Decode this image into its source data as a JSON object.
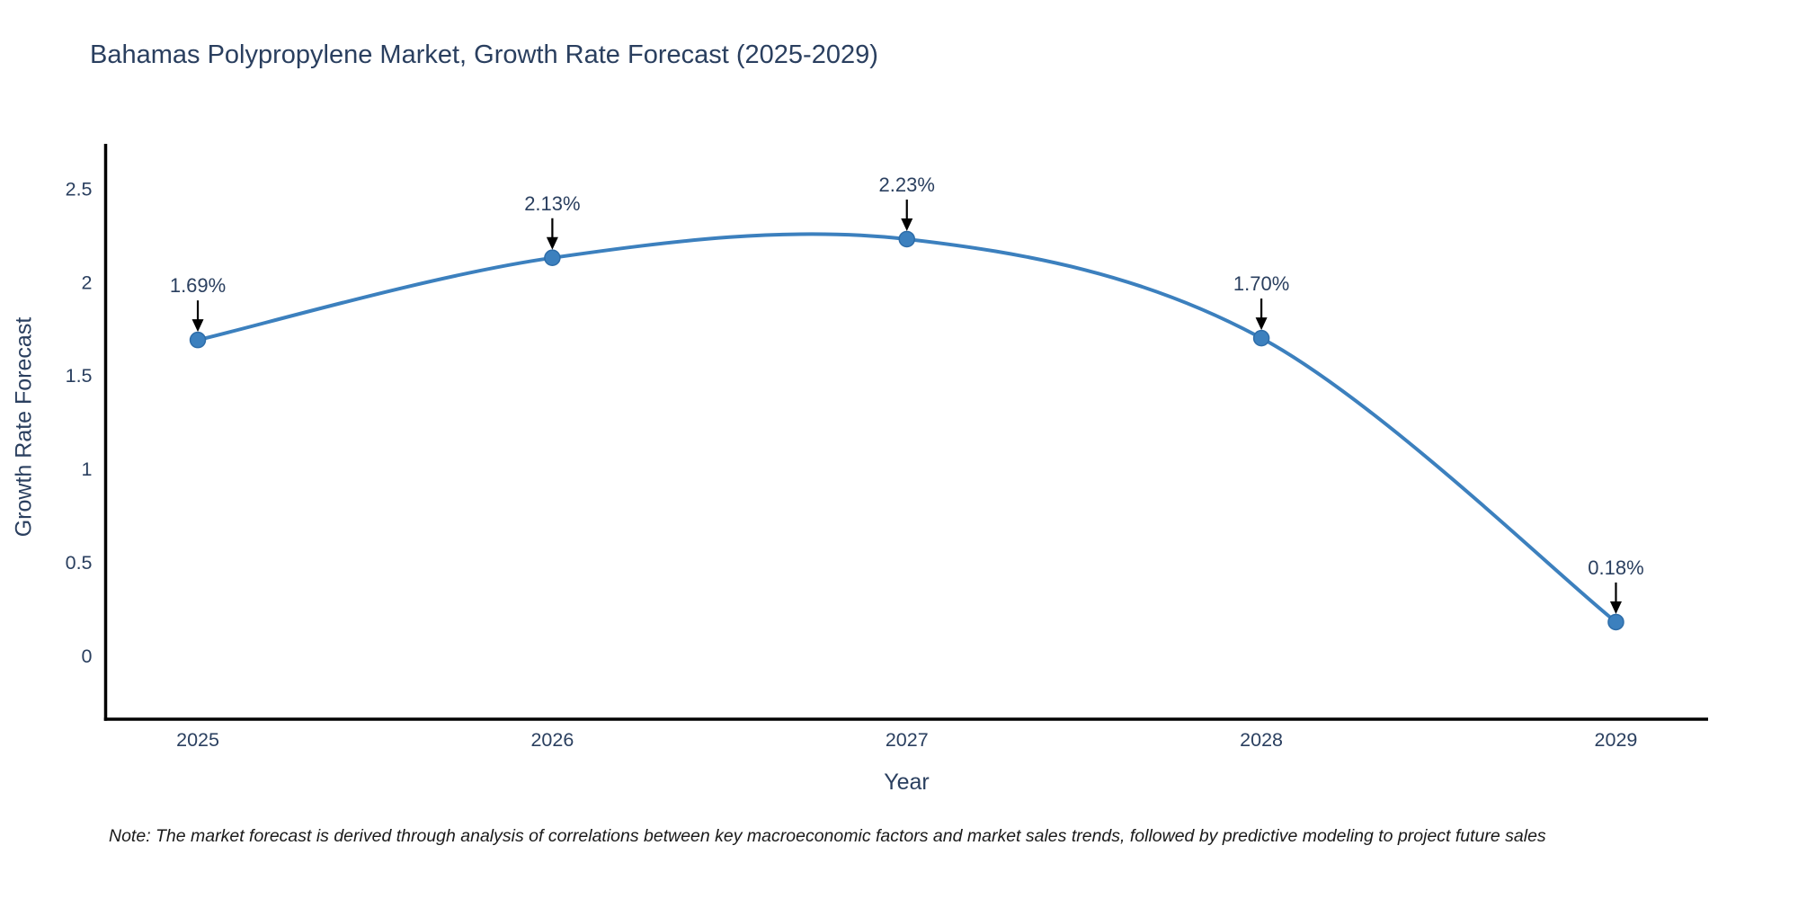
{
  "note": "Note: The market forecast is derived through analysis of correlations between key macroeconomic factors and market sales trends, followed by predictive modeling to project future sales",
  "chart_data": {
    "type": "line",
    "line_shape": "spline",
    "title": "Bahamas Polypropylene Market, Growth Rate Forecast (2025-2029)",
    "xlabel": "Year",
    "ylabel": "Growth Rate Forecast",
    "x": [
      2025,
      2026,
      2027,
      2028,
      2029
    ],
    "values": [
      1.69,
      2.13,
      2.23,
      1.7,
      0.18
    ],
    "point_labels": [
      "1.69%",
      "2.13%",
      "2.23%",
      "1.70%",
      "0.18%"
    ],
    "x_tick_labels": [
      "2025",
      "2026",
      "2027",
      "2028",
      "2029"
    ],
    "y_ticks": [
      0,
      0.5,
      1,
      1.5,
      2,
      2.5
    ],
    "y_tick_labels": [
      "0",
      "0.5",
      "1",
      "1.5",
      "2",
      "2.5"
    ],
    "xlim": [
      2024.74,
      2029.26
    ],
    "ylim": [
      -0.34,
      2.74
    ],
    "grid": false,
    "legend": false,
    "colors": {
      "line": "#3c80be",
      "marker": "#3c80be",
      "marker_edge": "#2e6da9",
      "axis": "#000000",
      "tick_text": "#2a3f5f",
      "annotation_text": "#2a3f5f",
      "annotation_arrow": "#000000"
    }
  }
}
